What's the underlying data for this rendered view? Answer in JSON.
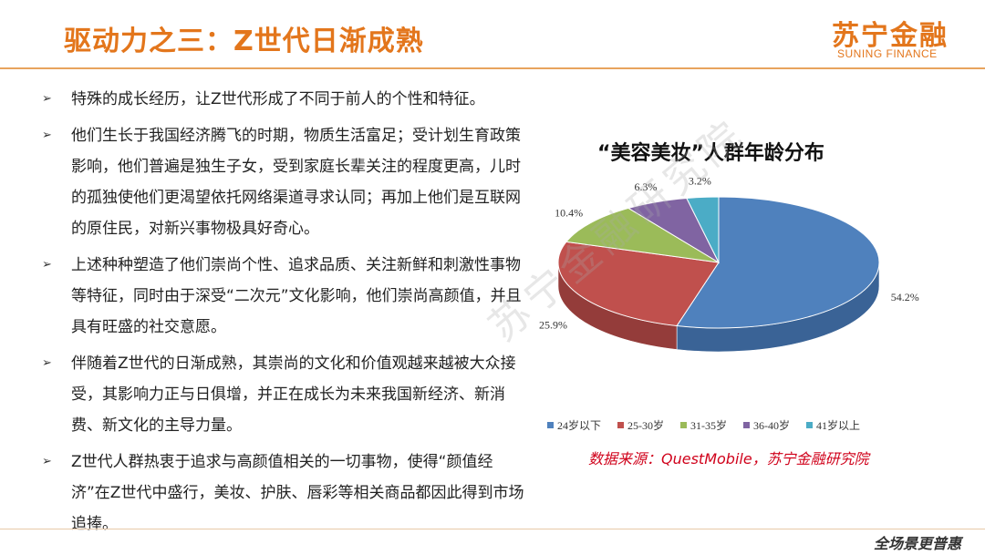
{
  "header": {
    "title": "驱动力之三：Z世代日渐成熟",
    "logo_cn": "苏宁金融",
    "logo_en": "SUNING FINANCE"
  },
  "bullets": [
    "特殊的成长经历，让Z世代形成了不同于前人的个性和特征。",
    "他们生长于我国经济腾飞的时期，物质生活富足；受计划生育政策影响，他们普遍是独生子女，受到家庭长辈关注的程度更高，儿时的孤独使他们更渴望依托网络渠道寻求认同；再加上他们是互联网的原住民，对新兴事物极具好奇心。",
    "上述种种塑造了他们崇尚个性、追求品质、关注新鲜和刺激性事物等特征，同时由于深受“二次元”文化影响，他们崇尚高颜值，并且具有旺盛的社交意愿。",
    "伴随着Z世代的日渐成熟，其崇尚的文化和价值观越来越被大众接受，其影响力正与日俱增，并正在成长为未来我国新经济、新消费、新文化的主导力量。",
    "Z世代人群热衷于追求与高颜值相关的一切事物，使得“颜值经济”在Z世代中盛行，美妆、护肤、唇彩等相关商品都因此得到市场追捧。"
  ],
  "bullet_mark": "➢",
  "chart_data": {
    "type": "pie",
    "title": "“美容美妆”人群年龄分布",
    "categories": [
      "24岁以下",
      "25-30岁",
      "31-35岁",
      "36-40岁",
      "41岁以上"
    ],
    "values": [
      54.2,
      25.9,
      10.4,
      6.3,
      3.2
    ],
    "value_labels": [
      "54.2%",
      "25.9%",
      "10.4%",
      "6.3%",
      "3.2%"
    ],
    "colors": [
      "#4f81bd",
      "#c0504d",
      "#9bbb59",
      "#8064a2",
      "#4bacc6"
    ],
    "side_colors": [
      "#3a6396",
      "#943c3a",
      "#76903f",
      "#614b7d",
      "#358a9f"
    ],
    "legend_position": "bottom",
    "style": "3d"
  },
  "source": "数据来源：QuestMobile，苏宁金融研究院",
  "watermark": "苏宁金融研究院",
  "footer_logo": "全场景更普惠"
}
